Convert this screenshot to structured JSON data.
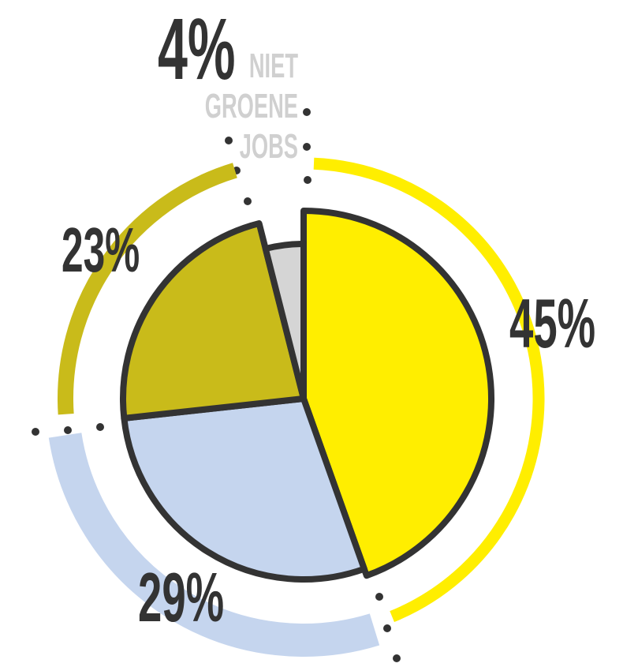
{
  "chart_data": {
    "type": "pie",
    "categories": [
      null,
      null,
      null,
      "NIET GROENE JOBS"
    ],
    "values": [
      45,
      29,
      23,
      4
    ],
    "value_labels": [
      "45%",
      "29%",
      "23%",
      "4%"
    ],
    "colors": [
      "#ffee00",
      "#c5d5ee",
      "#c9bb1a",
      "#d5d5d5"
    ]
  }
}
